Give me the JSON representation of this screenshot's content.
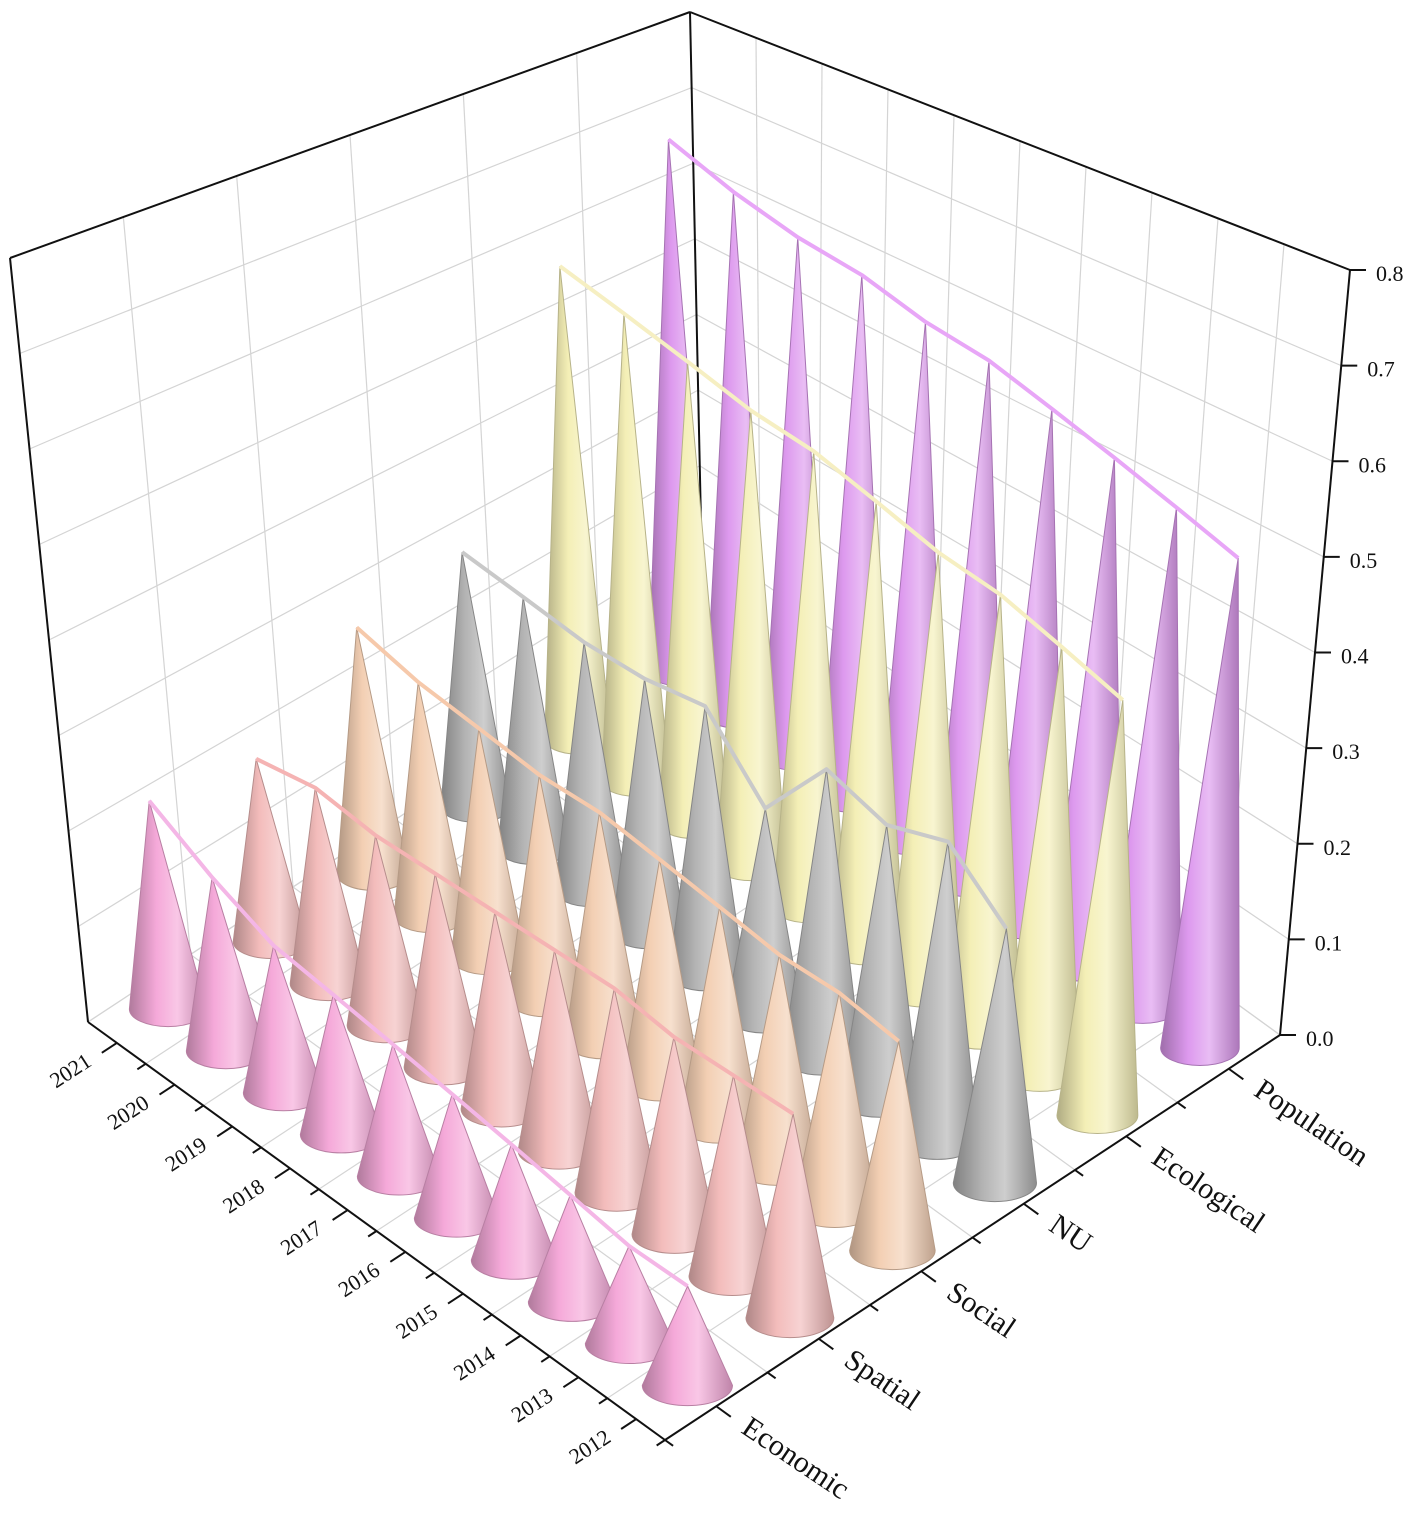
{
  "chart_data": {
    "type": "cone",
    "categories": [
      "2012",
      "2013",
      "2014",
      "2015",
      "2016",
      "2017",
      "2018",
      "2019",
      "2020",
      "2021"
    ],
    "series": [
      {
        "name": "Economic",
        "color": "#f5a9d9",
        "line_color": "#f4b6e6",
        "values": [
          0.09,
          0.09,
          0.1,
          0.11,
          0.12,
          0.13,
          0.14,
          0.15,
          0.18,
          0.22
        ]
      },
      {
        "name": "Spatial",
        "color": "#f3bcbb",
        "line_color": "#f5b3b3",
        "values": [
          0.19,
          0.19,
          0.19,
          0.2,
          0.2,
          0.2,
          0.2,
          0.2,
          0.21,
          0.2
        ]
      },
      {
        "name": "Social",
        "color": "#f3cfb3",
        "line_color": "#f6c9ab",
        "values": [
          0.2,
          0.21,
          0.21,
          0.22,
          0.23,
          0.24,
          0.24,
          0.25,
          0.26,
          0.28
        ]
      },
      {
        "name": "NU",
        "color": "#b3b3b3",
        "line_color": "#c9c9c9",
        "values": [
          0.25,
          0.3,
          0.28,
          0.3,
          0.22,
          0.29,
          0.28,
          0.28,
          0.29,
          0.3
        ]
      },
      {
        "name": "Ecological",
        "color": "#f4efb6",
        "line_color": "#f6efc2",
        "values": [
          0.42,
          0.44,
          0.46,
          0.47,
          0.49,
          0.51,
          0.52,
          0.54,
          0.56,
          0.58
        ]
      },
      {
        "name": "Population",
        "color": "#dd99ee",
        "line_color": "#e8a6f7",
        "values": [
          0.51,
          0.53,
          0.55,
          0.57,
          0.59,
          0.6,
          0.62,
          0.63,
          0.65,
          0.68
        ]
      }
    ],
    "zlim": [
      0,
      0.8
    ],
    "zticks": [
      {
        "value": 0,
        "label": "0.0"
      },
      0.1,
      0.2,
      0.3,
      0.4,
      0.5,
      0.6,
      0.7,
      0.8
    ],
    "grid": true
  }
}
